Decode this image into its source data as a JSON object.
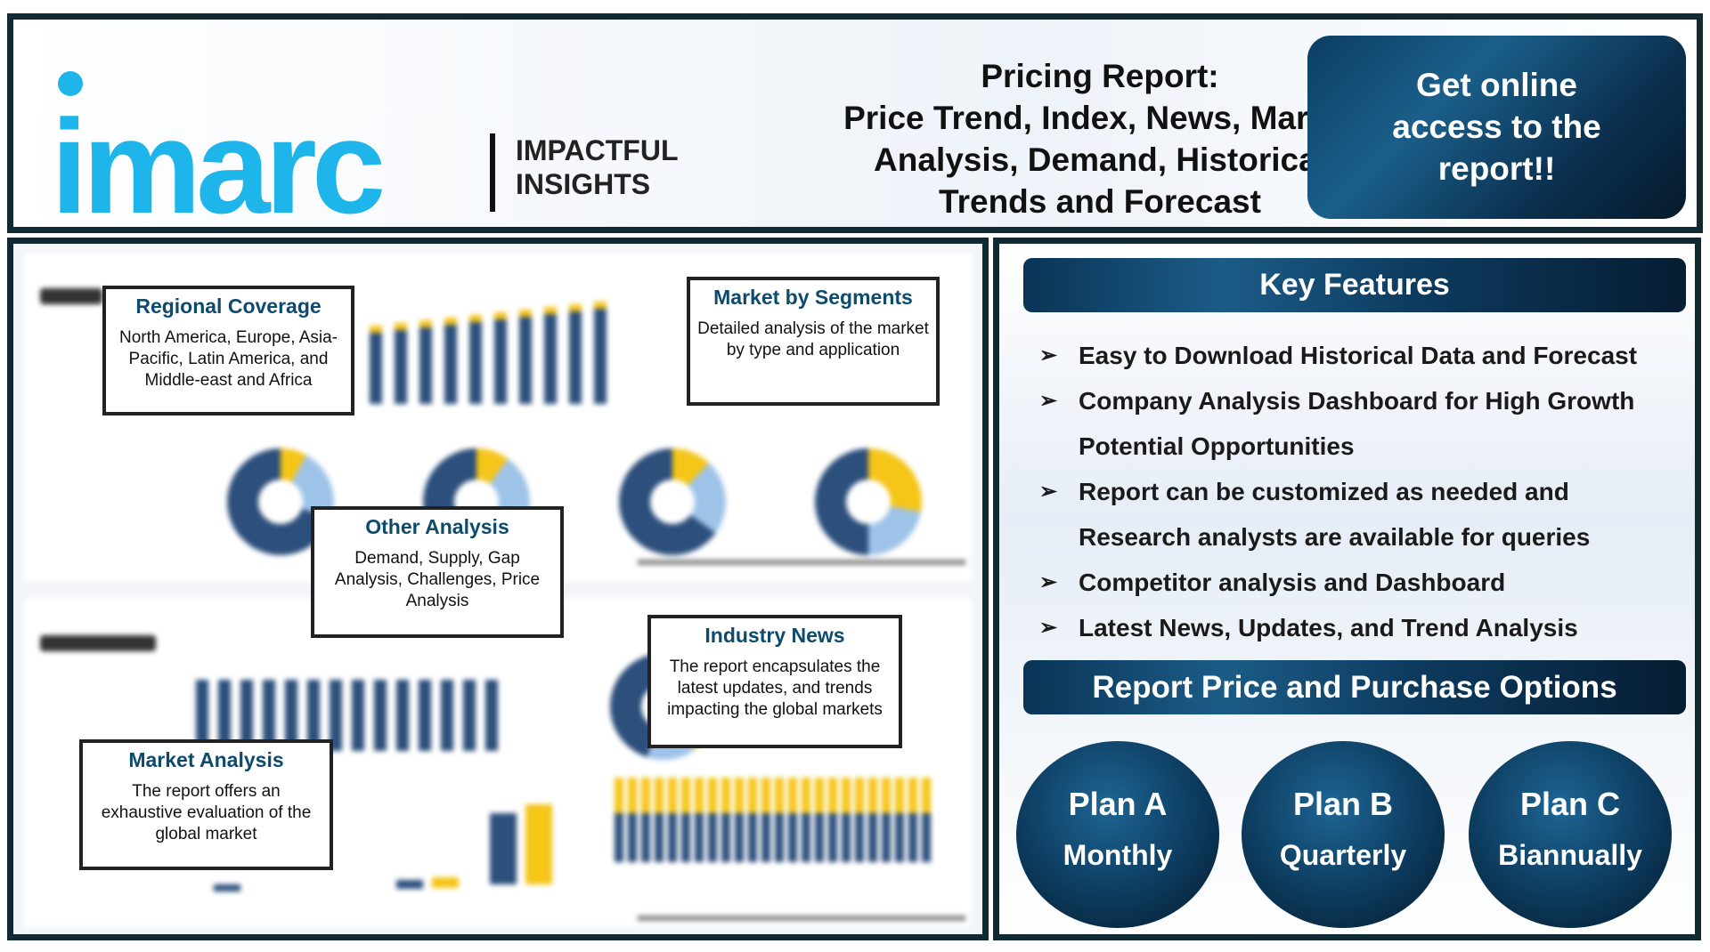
{
  "header": {
    "logo_text": "imarc",
    "tagline": [
      "IMPACTFUL",
      "INSIGHTS"
    ],
    "title_lines": [
      "Pricing Report:",
      "Price Trend, Index, News, Market",
      "Analysis, Demand, Historical",
      "Trends and Forecast"
    ],
    "cta_lines": [
      "Get online",
      "access to the",
      "report!!"
    ]
  },
  "callouts": {
    "regional": {
      "title": "Regional Coverage",
      "text": "North America, Europe, Asia-Pacific, Latin America, and Middle-east and Africa"
    },
    "segments": {
      "title": "Market by Segments",
      "text": "Detailed analysis of the market by type and application"
    },
    "other": {
      "title": "Other Analysis",
      "text": "Demand, Supply, Gap Analysis, Challenges, Price Analysis"
    },
    "news": {
      "title": "Industry News",
      "text": "The report encapsulates the latest updates, and trends impacting the global markets"
    },
    "market": {
      "title": "Market Analysis",
      "text": "The report offers an exhaustive evaluation of the global market"
    }
  },
  "features": {
    "title": "Key Features",
    "items": [
      "Easy to Download Historical Data and Forecast",
      "Company Analysis Dashboard for High Growth Potential Opportunities",
      "Report can be customized as needed and Research analysts are available for queries",
      "Competitor analysis and Dashboard",
      "Latest News, Updates, and Trend Analysis"
    ]
  },
  "pricing": {
    "title": "Report Price and Purchase Options",
    "plans": [
      {
        "name": "Plan A",
        "period": "Monthly"
      },
      {
        "name": "Plan B",
        "period": "Quarterly"
      },
      {
        "name": "Plan C",
        "period": "Biannually"
      }
    ]
  },
  "colors": {
    "brand": "#1eb5ea",
    "navy": "#0c3b5e",
    "bar_blue": "#2c4f7c",
    "bar_yellow": "#f5c518"
  }
}
